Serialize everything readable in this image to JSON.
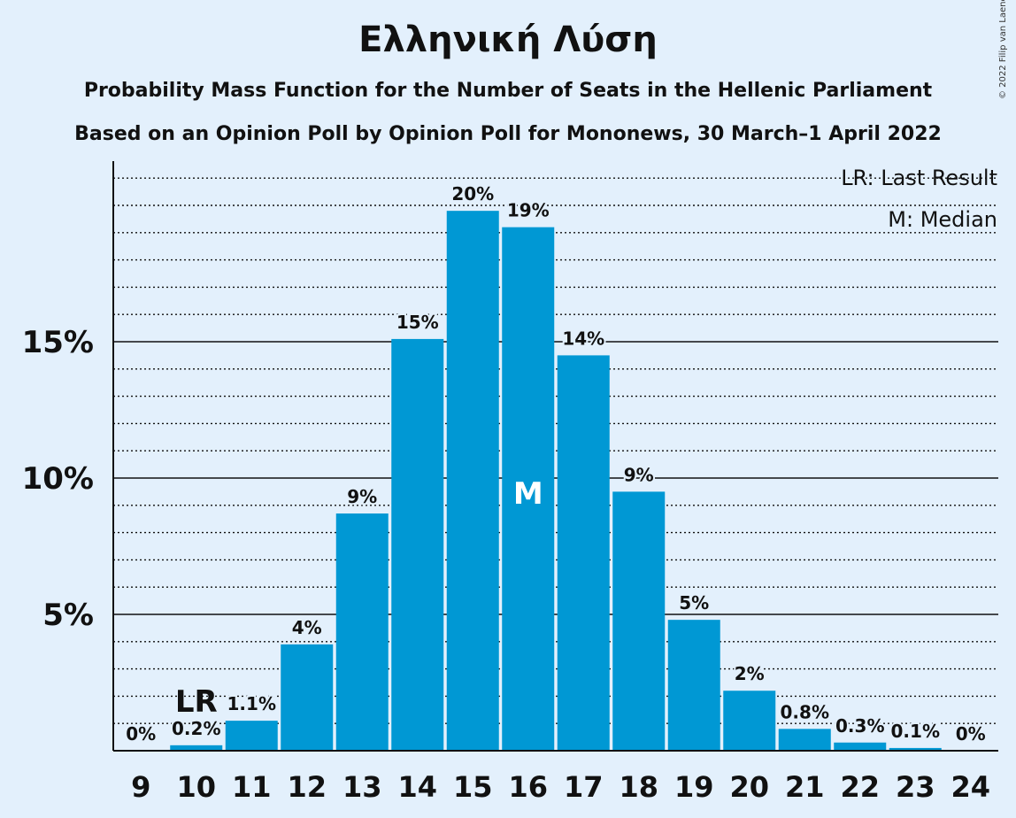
{
  "header": {
    "title": "Ελληνική Λύση",
    "subtitle1": "Probability Mass Function for the Number of Seats in the Hellenic Parliament",
    "subtitle2": "Based on an Opinion Poll by Opinion Poll for Mononews, 30 March–1 April 2022",
    "copyright": "© 2022 Filip van Laenen"
  },
  "legend": {
    "lr": "LR: Last Result",
    "m": "M: Median"
  },
  "colors": {
    "bar": "#0098d4",
    "background": "#e3f0fc",
    "text": "#111111"
  },
  "chart_data": {
    "type": "bar",
    "categories": [
      "9",
      "10",
      "11",
      "12",
      "13",
      "14",
      "15",
      "16",
      "17",
      "18",
      "19",
      "20",
      "21",
      "22",
      "23",
      "24"
    ],
    "values": [
      0,
      0.2,
      1.1,
      3.9,
      8.7,
      15.1,
      19.8,
      19.2,
      14.5,
      9.5,
      4.8,
      2.2,
      0.8,
      0.3,
      0.1,
      0
    ],
    "labels": [
      "0%",
      "0.2%",
      "1.1%",
      "4%",
      "9%",
      "15%",
      "20%",
      "19%",
      "14%",
      "9%",
      "5%",
      "2%",
      "0.8%",
      "0.3%",
      "0.1%",
      "0%"
    ],
    "y_ticks": [
      {
        "value": 5,
        "label": "5%"
      },
      {
        "value": 10,
        "label": "10%"
      },
      {
        "value": 15,
        "label": "15%"
      }
    ],
    "ylim": [
      0,
      21.6
    ],
    "minor_grid_step": 1,
    "last_result": {
      "category": "10",
      "label": "LR"
    },
    "median": {
      "category": "16",
      "label": "M"
    },
    "legend_position": "top-right"
  }
}
